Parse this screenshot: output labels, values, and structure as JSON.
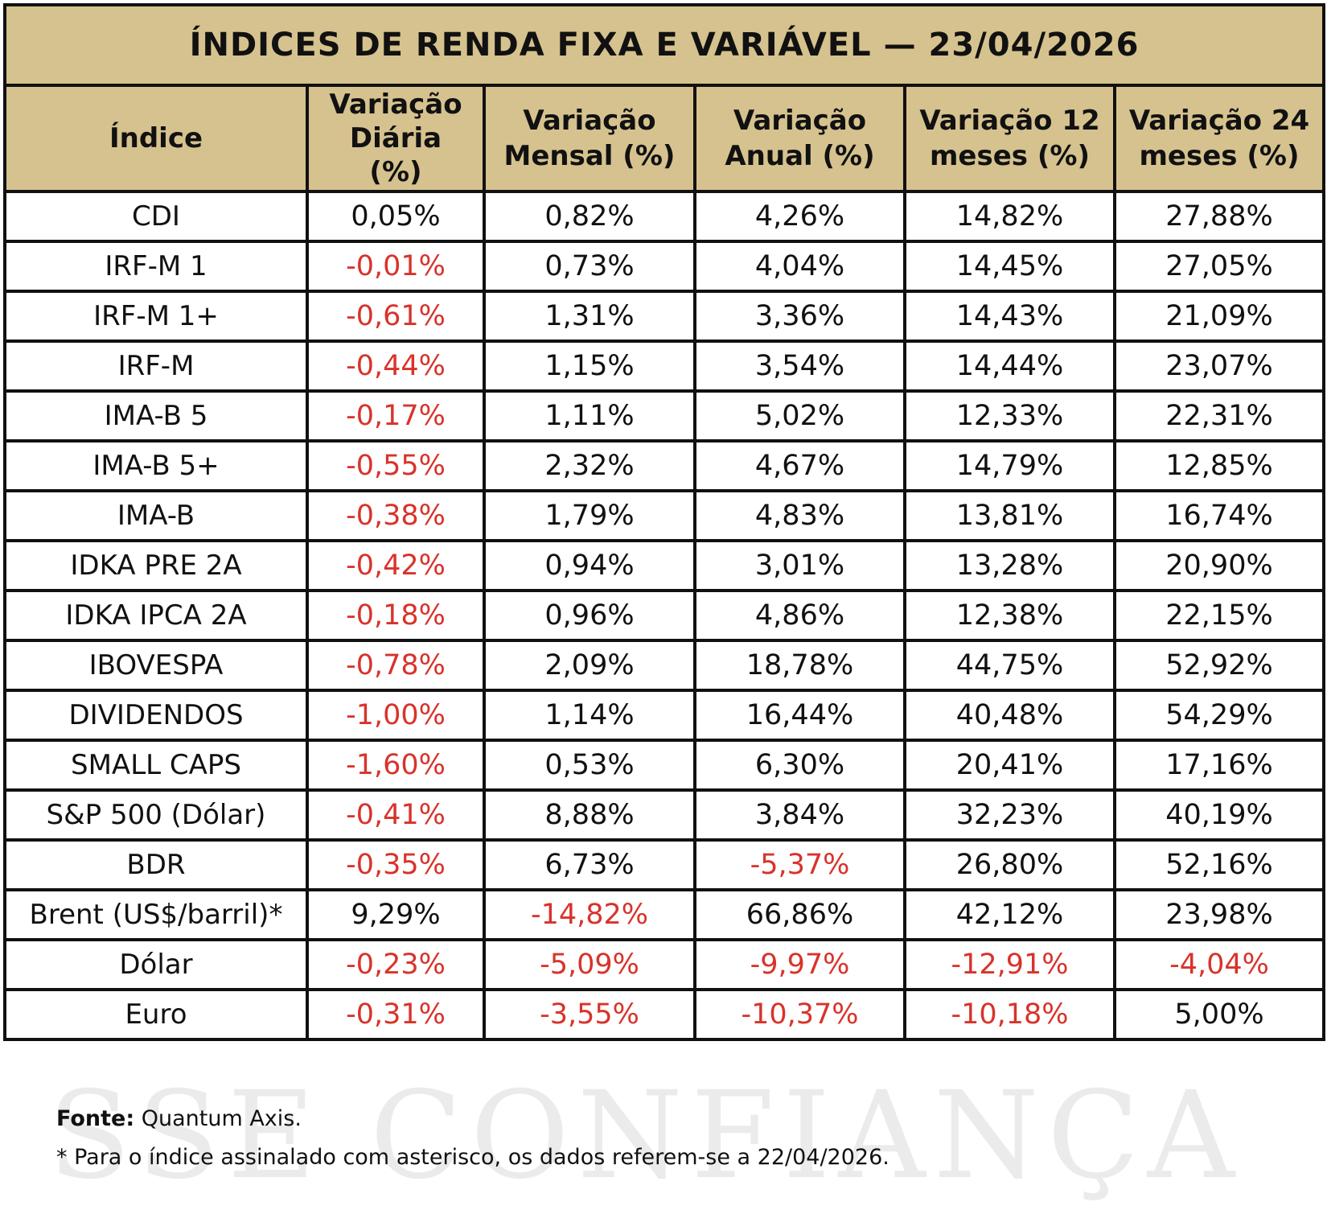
{
  "title": "ÍNDICES DE RENDA FIXA E VARIÁVEL — 23/04/2026",
  "columns": [
    "Índice",
    "Variação Diária (%)",
    "Variação Mensal (%)",
    "Variação Anual (%)",
    "Variação 12 meses (%)",
    "Variação 24 meses (%)"
  ],
  "rows": [
    {
      "name": "CDI",
      "values": [
        "0,05%",
        "0,82%",
        "4,26%",
        "14,82%",
        "27,88%"
      ]
    },
    {
      "name": "IRF-M 1",
      "values": [
        "-0,01%",
        "0,73%",
        "4,04%",
        "14,45%",
        "27,05%"
      ]
    },
    {
      "name": "IRF-M 1+",
      "values": [
        "-0,61%",
        "1,31%",
        "3,36%",
        "14,43%",
        "21,09%"
      ]
    },
    {
      "name": "IRF-M",
      "values": [
        "-0,44%",
        "1,15%",
        "3,54%",
        "14,44%",
        "23,07%"
      ]
    },
    {
      "name": "IMA-B 5",
      "values": [
        "-0,17%",
        "1,11%",
        "5,02%",
        "12,33%",
        "22,31%"
      ]
    },
    {
      "name": "IMA-B 5+",
      "values": [
        "-0,55%",
        "2,32%",
        "4,67%",
        "14,79%",
        "12,85%"
      ]
    },
    {
      "name": "IMA-B",
      "values": [
        "-0,38%",
        "1,79%",
        "4,83%",
        "13,81%",
        "16,74%"
      ]
    },
    {
      "name": "IDKA PRE 2A",
      "values": [
        "-0,42%",
        "0,94%",
        "3,01%",
        "13,28%",
        "20,90%"
      ]
    },
    {
      "name": "IDKA IPCA 2A",
      "values": [
        "-0,18%",
        "0,96%",
        "4,86%",
        "12,38%",
        "22,15%"
      ]
    },
    {
      "name": "IBOVESPA",
      "values": [
        "-0,78%",
        "2,09%",
        "18,78%",
        "44,75%",
        "52,92%"
      ]
    },
    {
      "name": "DIVIDENDOS",
      "values": [
        "-1,00%",
        "1,14%",
        "16,44%",
        "40,48%",
        "54,29%"
      ]
    },
    {
      "name": "SMALL CAPS",
      "values": [
        "-1,60%",
        "0,53%",
        "6,30%",
        "20,41%",
        "17,16%"
      ]
    },
    {
      "name": "S&P 500 (Dólar)",
      "values": [
        "-0,41%",
        "8,88%",
        "3,84%",
        "32,23%",
        "40,19%"
      ]
    },
    {
      "name": "BDR",
      "values": [
        "-0,35%",
        "6,73%",
        "-5,37%",
        "26,80%",
        "52,16%"
      ]
    },
    {
      "name": "Brent (US$/barril)*",
      "values": [
        "9,29%",
        "-14,82%",
        "66,86%",
        "42,12%",
        "23,98%"
      ]
    },
    {
      "name": "Dólar",
      "values": [
        "-0,23%",
        "-5,09%",
        "-9,97%",
        "-12,91%",
        "-4,04%"
      ]
    },
    {
      "name": "Euro",
      "values": [
        "-0,31%",
        "-3,55%",
        "-10,37%",
        "-10,18%",
        "5,00%"
      ]
    }
  ],
  "footer": {
    "source_label": "Fonte:",
    "source_value": " Quantum Axis.",
    "note": "* Para o índice assinalado com asterisco, os dados referem-se a 22/04/2026."
  },
  "watermark": "SSE CONFIANÇA",
  "colors": {
    "header_bg": "#d6c28e",
    "negative": "#d8332b",
    "border": "#111111"
  }
}
